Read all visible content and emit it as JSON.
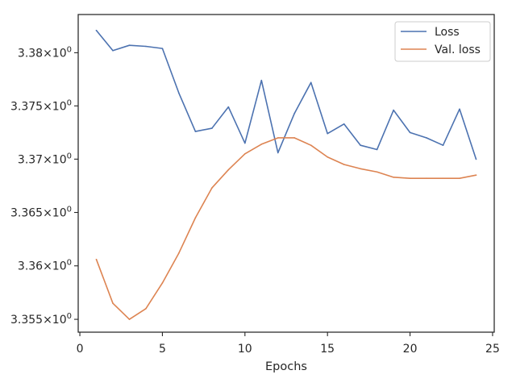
{
  "chart_data": {
    "type": "line",
    "xlabel": "Epochs",
    "ylabel": "",
    "xlim": [
      -0.1,
      25.1
    ],
    "ylim": [
      3.3538,
      3.3836
    ],
    "x_ticks": [
      0,
      5,
      10,
      15,
      20,
      25
    ],
    "x_tick_labels": [
      "0",
      "5",
      "10",
      "15",
      "20",
      "25"
    ],
    "y_ticks": [
      3.355,
      3.36,
      3.365,
      3.37,
      3.375,
      3.38
    ],
    "y_tick_labels": [
      {
        "mantissa": "3.355",
        "base": "10",
        "exp": "0"
      },
      {
        "mantissa": "3.36",
        "base": "10",
        "exp": "0"
      },
      {
        "mantissa": "3.365",
        "base": "10",
        "exp": "0"
      },
      {
        "mantissa": "3.37",
        "base": "10",
        "exp": "0"
      },
      {
        "mantissa": "3.375",
        "base": "10",
        "exp": "0"
      },
      {
        "mantissa": "3.38",
        "base": "10",
        "exp": "0"
      }
    ],
    "y_scale": "log",
    "grid": false,
    "legend_position": "top-right",
    "x": [
      1,
      2,
      3,
      4,
      5,
      6,
      7,
      8,
      9,
      10,
      11,
      12,
      13,
      14,
      15,
      16,
      17,
      18,
      19,
      20,
      21,
      22,
      23,
      24
    ],
    "series": [
      {
        "name": "Loss",
        "color": "#4c72b0",
        "values": [
          3.3821,
          3.3802,
          3.3807,
          3.3806,
          3.3804,
          3.3762,
          3.3726,
          3.3729,
          3.3749,
          3.3715,
          3.3774,
          3.3706,
          3.3743,
          3.3772,
          3.3724,
          3.3733,
          3.3713,
          3.3709,
          3.3746,
          3.3725,
          3.372,
          3.3713,
          3.3747,
          3.37
        ]
      },
      {
        "name": "Val. loss",
        "color": "#dd8452",
        "values": [
          3.3606,
          3.3565,
          3.355,
          3.356,
          3.3584,
          3.3612,
          3.3645,
          3.3673,
          3.369,
          3.3705,
          3.3714,
          3.372,
          3.372,
          3.3713,
          3.3702,
          3.3695,
          3.3691,
          3.3688,
          3.3683,
          3.3682,
          3.3682,
          3.3682,
          3.3682,
          3.3685
        ]
      }
    ]
  }
}
